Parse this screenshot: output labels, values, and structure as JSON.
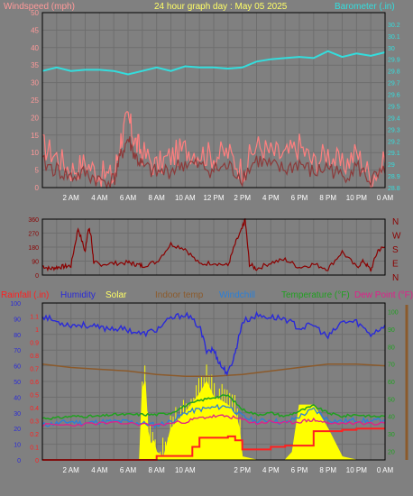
{
  "colors": {
    "background": "#808080",
    "grid": "#6e6e6e",
    "axis": "#000000",
    "title": "#ffff66",
    "wind_label": "#ff9999",
    "baro_label": "#33dddd",
    "wind_line_light": "#ff7f7f",
    "wind_line_dark": "#8b3a3a",
    "baro_line": "#33dddd",
    "dir_line": "#8b0000",
    "dir_letters": "#8b0000",
    "rain": "#ff2020",
    "humidity": "#2a2ad8",
    "solar": "#ffff00",
    "indoor": "#8b5a2b",
    "windchill": "#2a7fd8",
    "temperature": "#20a020",
    "dewpoint": "#e0208a"
  },
  "chart_data": [
    {
      "type": "line",
      "title": "24 hour graph day : May 05 2025",
      "left_label": "Windspeed (mph)",
      "right_label": "Barometer (.in)",
      "x_tick_labels": [
        "2 AM",
        "4 AM",
        "6 AM",
        "8 AM",
        "10 AM",
        "12 PM",
        "2 PM",
        "4 PM",
        "6 PM",
        "8 PM",
        "10 PM",
        "0 AM"
      ],
      "y_left_ticks": [
        "0",
        "5",
        "10",
        "15",
        "20",
        "25",
        "30",
        "35",
        "40",
        "45",
        "50"
      ],
      "y_left_range": [
        0,
        50
      ],
      "y_right_ticks": [
        "28.8",
        "28.9",
        "29",
        "29.1",
        "29.2",
        "29.3",
        "29.4",
        "29.5",
        "29.6",
        "29.7",
        "29.8",
        "29.9",
        "30",
        "30.1",
        "30.2"
      ],
      "y_right_range": [
        28.8,
        30.3
      ],
      "grid": true,
      "series": [
        {
          "name": "Windspeed",
          "axis": "left",
          "hours": [
            0,
            1,
            2,
            3,
            4,
            5,
            5.5,
            6,
            6.5,
            7,
            8,
            9,
            10,
            11,
            12,
            13,
            14,
            15,
            16,
            17,
            18,
            19,
            20,
            21,
            22,
            23,
            24
          ],
          "values": [
            12,
            9,
            5,
            7,
            4,
            3,
            14,
            20,
            13,
            10,
            6,
            9,
            11,
            10,
            9,
            10,
            5,
            12,
            10,
            9,
            12,
            7,
            10,
            6,
            10,
            3,
            7
          ]
        },
        {
          "name": "Windspeed avg",
          "axis": "left",
          "hours": [
            0,
            1,
            2,
            3,
            4,
            5,
            5.5,
            6,
            6.5,
            7,
            8,
            9,
            10,
            11,
            12,
            13,
            14,
            15,
            16,
            17,
            18,
            19,
            20,
            21,
            22,
            23,
            24
          ],
          "values": [
            7,
            5,
            3,
            4,
            2,
            2,
            9,
            14,
            9,
            6,
            4,
            5,
            7,
            6,
            5,
            6,
            3,
            8,
            6,
            5,
            7,
            4,
            6,
            3,
            6,
            2,
            4
          ]
        },
        {
          "name": "Barometer",
          "axis": "right",
          "hours": [
            0,
            1,
            2,
            3,
            4,
            5,
            6,
            7,
            8,
            9,
            10,
            11,
            12,
            13,
            14,
            15,
            16,
            17,
            18,
            19,
            20,
            21,
            22,
            23,
            24
          ],
          "values": [
            29.8,
            29.83,
            29.8,
            29.81,
            29.81,
            29.8,
            29.77,
            29.8,
            29.83,
            29.8,
            29.84,
            29.83,
            29.83,
            29.82,
            29.83,
            29.88,
            29.9,
            29.91,
            29.92,
            29.91,
            29.97,
            29.92,
            29.95,
            29.93,
            29.96
          ]
        }
      ]
    },
    {
      "type": "line",
      "title": "",
      "x_tick_labels": [],
      "y_left_ticks": [
        "0",
        "90",
        "180",
        "270",
        "360"
      ],
      "y_left_range": [
        0,
        360
      ],
      "dir_letters": [
        "N",
        "W",
        "S",
        "E",
        "N"
      ],
      "grid": true,
      "series": [
        {
          "name": "Wind direction",
          "hours": [
            0,
            0.5,
            1,
            1.5,
            2,
            2.5,
            3,
            3.2,
            3.4,
            3.6,
            4,
            5,
            6,
            6.5,
            7,
            8,
            9,
            10,
            11,
            12,
            13,
            13.5,
            14,
            14.2,
            14.5,
            15,
            16,
            17,
            18,
            19,
            20,
            21,
            22,
            22.5,
            23,
            23.5,
            24
          ],
          "values": [
            60,
            40,
            50,
            55,
            60,
            300,
            150,
            300,
            260,
            80,
            70,
            75,
            80,
            70,
            60,
            85,
            200,
            170,
            70,
            80,
            60,
            200,
            300,
            360,
            70,
            40,
            80,
            100,
            50,
            70,
            40,
            150,
            50,
            90,
            30,
            160,
            180
          ]
        }
      ]
    },
    {
      "type": "line",
      "title": "",
      "legend": [
        "Rainfall (.in)",
        "Humidity",
        "Solar",
        "Indoor temp",
        "Windchill",
        "Temperature (°F)",
        "Dew Point (°F)"
      ],
      "x_tick_labels": [
        "2 AM",
        "4 AM",
        "6 AM",
        "8 AM",
        "10 AM",
        "2 PM",
        "4 PM",
        "6 PM",
        "8 PM",
        "10 PM",
        "0 AM"
      ],
      "y_left_ticks": [
        "0",
        "10",
        "20",
        "30",
        "40",
        "50",
        "60",
        "70",
        "80",
        "90",
        "100"
      ],
      "y_left_range": [
        0,
        100
      ],
      "y_rain_ticks": [
        "0",
        "0.1",
        "0.2",
        "0.3",
        "0.4",
        "0.5",
        "0.6",
        "0.7",
        "0.8",
        "0.9",
        "1",
        "1.1"
      ],
      "y_rain_range": [
        0,
        1.2
      ],
      "y_right_ticks": [
        "20",
        "30",
        "40",
        "50",
        "60",
        "70",
        "80",
        "90",
        "100"
      ],
      "y_right_range": [
        15,
        105
      ],
      "grid": true,
      "series": [
        {
          "name": "Humidity",
          "axis": "left",
          "hours": [
            0,
            1,
            2,
            3,
            4,
            5,
            6,
            7,
            8,
            9,
            10,
            11,
            11.5,
            12,
            12.5,
            13,
            13.5,
            14,
            15,
            16,
            17,
            18,
            19,
            20,
            21,
            22,
            23,
            24
          ],
          "values": [
            92,
            88,
            86,
            86,
            84,
            84,
            83,
            80,
            83,
            90,
            93,
            85,
            70,
            70,
            60,
            55,
            68,
            88,
            92,
            91,
            90,
            84,
            86,
            78,
            88,
            88,
            80,
            86
          ]
        },
        {
          "name": "Solar",
          "axis": "left",
          "hours": [
            0,
            6.8,
            7,
            7.2,
            7.4,
            7.6,
            7.8,
            8,
            8.5,
            9,
            10,
            11,
            11.5,
            12,
            12.5,
            13,
            13.5,
            13.8,
            14,
            15,
            16,
            17,
            17.5,
            18,
            19,
            20,
            21,
            22,
            23,
            24
          ],
          "values": [
            0,
            0,
            45,
            50,
            18,
            10,
            12,
            5,
            2,
            20,
            30,
            42,
            50,
            40,
            38,
            35,
            30,
            20,
            2,
            0,
            0,
            0,
            5,
            35,
            35,
            20,
            2,
            0,
            0,
            0
          ]
        },
        {
          "name": "Indoor temp",
          "axis": "right",
          "hours": [
            0,
            2,
            4,
            6,
            8,
            10,
            12,
            14,
            16,
            18,
            20,
            22,
            24
          ],
          "values": [
            70,
            68,
            67,
            66,
            64,
            63,
            63,
            64,
            66,
            68,
            70,
            70,
            69
          ]
        },
        {
          "name": "Windchill",
          "axis": "right",
          "hours": [
            0,
            1,
            2,
            3,
            4,
            5,
            6,
            7,
            8,
            9,
            10,
            11,
            12,
            13,
            14,
            15,
            16,
            17,
            18,
            19,
            20,
            21,
            22,
            23,
            24
          ],
          "values": [
            35,
            36,
            37,
            36,
            37,
            37,
            37,
            36,
            35,
            37,
            42,
            44,
            45,
            46,
            40,
            37,
            38,
            36,
            40,
            44,
            38,
            37,
            38,
            37,
            38
          ]
        },
        {
          "name": "Temperature (°F)",
          "axis": "right",
          "hours": [
            0,
            1,
            2,
            3,
            4,
            5,
            6,
            7,
            8,
            9,
            10,
            11,
            12,
            13,
            14,
            15,
            16,
            17,
            18,
            19,
            20,
            21,
            22,
            23,
            24
          ],
          "values": [
            39,
            39,
            40,
            40,
            40,
            41,
            41,
            41,
            41,
            42,
            46,
            49,
            51,
            52,
            44,
            41,
            42,
            40,
            43,
            46,
            42,
            40,
            41,
            40,
            40
          ]
        },
        {
          "name": "Dew Point (°F)",
          "axis": "right",
          "hours": [
            0,
            2,
            4,
            6,
            8,
            10,
            11,
            12,
            13,
            14,
            15,
            16,
            17,
            18,
            19,
            20,
            22,
            24
          ],
          "values": [
            35,
            35,
            36,
            36,
            35,
            37,
            39,
            40,
            40,
            38,
            36,
            37,
            36,
            37,
            38,
            36,
            36,
            36
          ]
        },
        {
          "name": "Rainfall (.in)",
          "axis": "rain",
          "hours": [
            0,
            7.8,
            8,
            9,
            10.5,
            11,
            12,
            13,
            13.5,
            14,
            15,
            16,
            17,
            18,
            19,
            20,
            21,
            22,
            23,
            23.5,
            24
          ],
          "values": [
            0,
            0,
            0.03,
            0.03,
            0.1,
            0.17,
            0.17,
            0.18,
            0.15,
            0.08,
            0.08,
            0.1,
            0.11,
            0.11,
            0.22,
            0.22,
            0.23,
            0.24,
            0.24,
            0.24,
            0.24
          ]
        }
      ]
    }
  ]
}
